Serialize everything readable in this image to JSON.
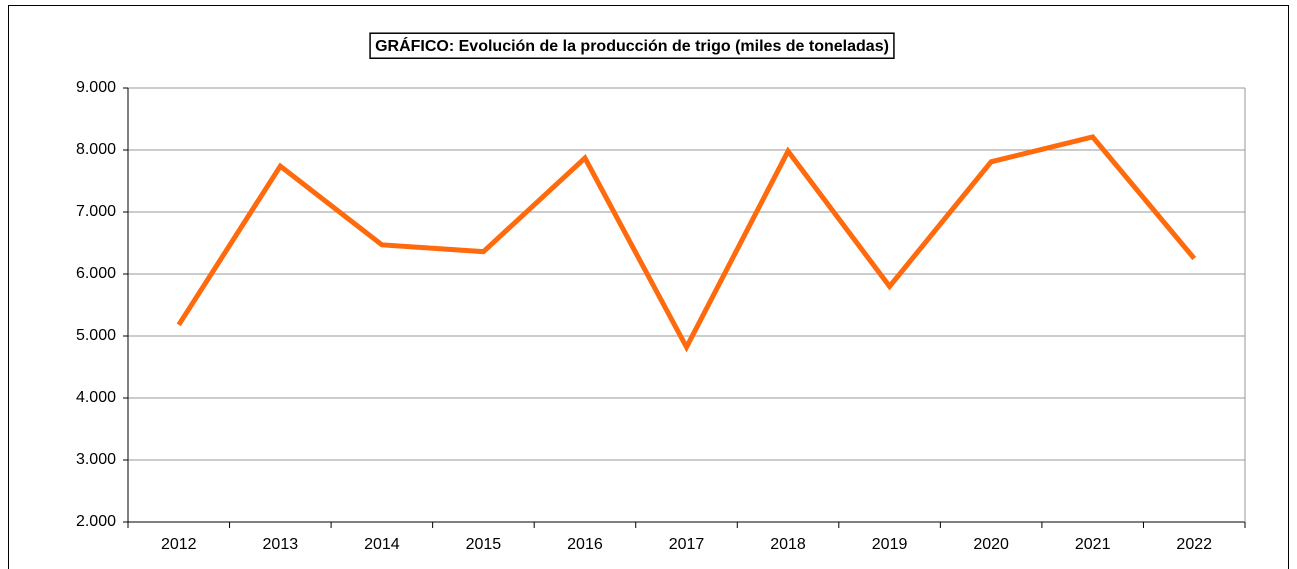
{
  "chart_data": {
    "type": "line",
    "title": "GRÁFICO: Evolución de la producción de trigo (miles de toneladas)",
    "categories": [
      "2012",
      "2013",
      "2014",
      "2015",
      "2016",
      "2017",
      "2018",
      "2019",
      "2020",
      "2021",
      "2022"
    ],
    "series": [
      {
        "name": "Producción de trigo",
        "color": "#ff6a0d",
        "values": [
          5180,
          7740,
          6470,
          6360,
          7870,
          4820,
          7980,
          5800,
          7810,
          8210,
          6250
        ]
      }
    ],
    "ylim": [
      2000,
      9000
    ],
    "yticks": [
      {
        "value": 2000,
        "label": "2.000"
      },
      {
        "value": 3000,
        "label": "3.000"
      },
      {
        "value": 4000,
        "label": "4.000"
      },
      {
        "value": 5000,
        "label": "5.000"
      },
      {
        "value": 6000,
        "label": "6.000"
      },
      {
        "value": 7000,
        "label": "7.000"
      },
      {
        "value": 8000,
        "label": "8.000"
      },
      {
        "value": 9000,
        "label": "9.000"
      }
    ],
    "grid": true
  }
}
